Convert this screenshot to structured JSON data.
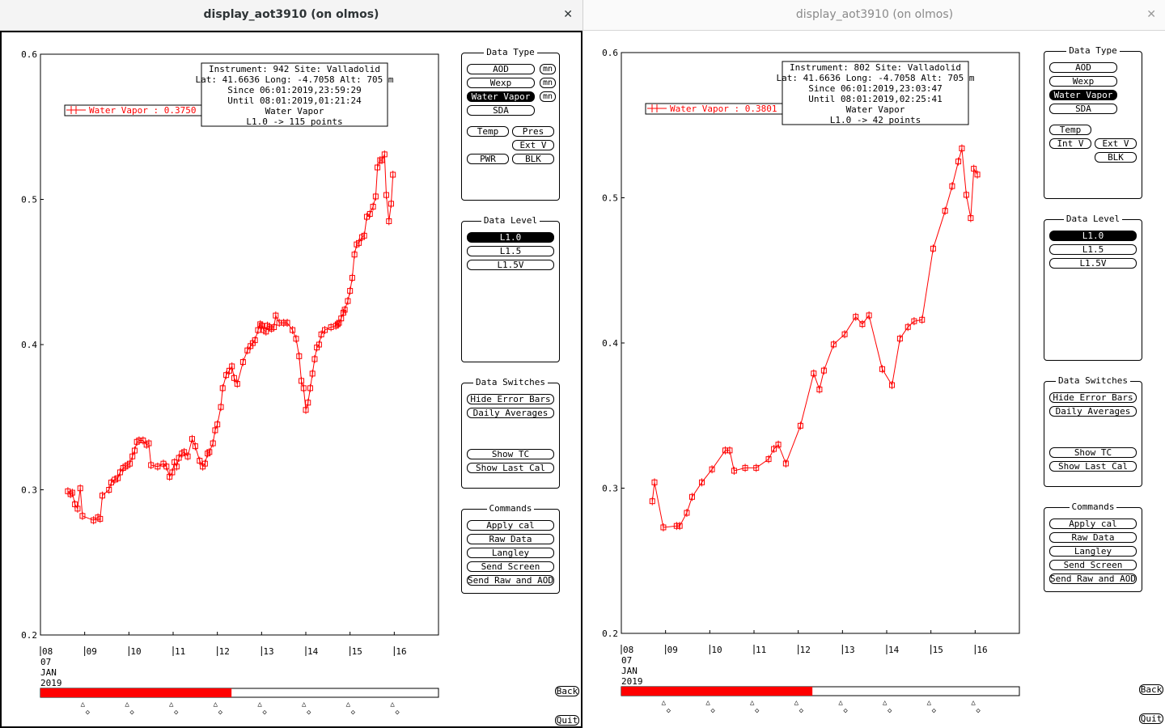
{
  "windows": [
    {
      "title": "display_aot3910 (on olmos)",
      "close_glyph": "✕",
      "active": true,
      "info": {
        "line1": "Instrument: 942 Site: Valladolid",
        "line2": "Lat: 41.6636 Long: -4.7058 Alt: 705 m",
        "line3": "Since 06:01:2019,23:59:29",
        "line4": "Until 08:01:2019,01:21:24",
        "line5": "Water Vapor",
        "line6": "L1.0 -> 115 points"
      },
      "legend_label": "Water Vapor : 0.3750 ±",
      "y_ticks": [
        "0.6",
        "0.5",
        "0.4",
        "0.3",
        "0.2"
      ],
      "x_ticks": [
        "08",
        "09",
        "10",
        "11",
        "12",
        "13",
        "14",
        "15",
        "16"
      ],
      "date_label": [
        "07",
        "JAN",
        "2019"
      ],
      "scroll_fill_fraction": 0.48,
      "chart_data": {
        "type": "scatter",
        "ylabel": "",
        "xlabel": "",
        "ylim": [
          0.2,
          0.6
        ],
        "xlim": [
          8,
          17
        ],
        "color": "#ff0000",
        "series": [
          {
            "x": [
              8.62,
              8.68,
              8.72,
              8.78,
              8.84,
              8.9,
              8.95,
              9.2,
              9.3,
              9.35,
              9.4,
              9.55,
              9.6,
              9.68,
              9.75,
              9.8,
              9.87,
              9.92,
              9.97,
              10.02,
              10.08,
              10.13,
              10.18,
              10.23,
              10.32,
              10.4,
              10.45,
              10.5,
              10.65,
              10.78,
              10.85,
              10.92,
              10.98,
              11.03,
              11.08,
              11.13,
              11.2,
              11.25,
              11.33,
              11.43,
              11.5,
              11.6,
              11.67,
              11.72,
              11.78,
              11.82,
              11.9,
              11.95,
              12.0,
              12.08,
              12.12,
              12.2,
              12.27,
              12.33,
              12.38,
              12.45,
              12.58,
              12.68,
              12.75,
              12.8,
              12.85,
              12.92,
              12.97,
              13.0,
              13.05,
              13.1,
              13.13,
              13.18,
              13.22,
              13.28,
              13.32,
              13.4,
              13.5,
              13.58,
              13.7,
              13.78,
              13.85,
              13.9,
              13.95,
              14.0,
              14.05,
              14.1,
              14.15,
              14.2,
              14.25,
              14.3,
              14.35,
              14.43,
              14.57,
              14.68,
              14.72,
              14.75,
              14.8,
              14.85,
              14.88,
              14.95,
              15.0,
              15.05,
              15.1,
              15.15,
              15.2,
              15.27,
              15.32,
              15.38,
              15.45,
              15.52,
              15.58,
              15.62,
              15.68,
              15.72,
              15.78,
              15.82,
              15.88,
              15.93,
              15.97
            ],
            "y": [
              0.299,
              0.297,
              0.298,
              0.29,
              0.287,
              0.301,
              0.282,
              0.279,
              0.281,
              0.28,
              0.296,
              0.3,
              0.305,
              0.307,
              0.308,
              0.312,
              0.315,
              0.316,
              0.317,
              0.318,
              0.323,
              0.327,
              0.333,
              0.334,
              0.334,
              0.331,
              0.332,
              0.317,
              0.316,
              0.318,
              0.316,
              0.309,
              0.312,
              0.319,
              0.316,
              0.322,
              0.325,
              0.326,
              0.323,
              0.335,
              0.33,
              0.32,
              0.316,
              0.318,
              0.325,
              0.326,
              0.332,
              0.341,
              0.345,
              0.357,
              0.37,
              0.379,
              0.382,
              0.385,
              0.377,
              0.373,
              0.388,
              0.396,
              0.399,
              0.401,
              0.403,
              0.41,
              0.414,
              0.413,
              0.41,
              0.409,
              0.413,
              0.412,
              0.411,
              0.412,
              0.42,
              0.415,
              0.415,
              0.415,
              0.41,
              0.404,
              0.392,
              0.375,
              0.37,
              0.355,
              0.36,
              0.37,
              0.38,
              0.39,
              0.398,
              0.4,
              0.407,
              0.41,
              0.412,
              0.413,
              0.414,
              0.415,
              0.418,
              0.422,
              0.424,
              0.43,
              0.437,
              0.446,
              0.462,
              0.469,
              0.47,
              0.474,
              0.475,
              0.488,
              0.49,
              0.495,
              0.502,
              0.522,
              0.527,
              0.527,
              0.531,
              0.503,
              0.485,
              0.497,
              0.517
            ]
          }
        ]
      },
      "side": {
        "data_type_title": "Data Type",
        "aod": "AOD",
        "wexp": "Wexp",
        "water_vapor": "Water Vapor",
        "sda": "SDA",
        "mn": "mn",
        "temp": "Temp",
        "pres": "Pres",
        "ext_v": "Ext V",
        "pwr": "PWR",
        "blk": "BLK",
        "data_level_title": "Data Level",
        "l10": "L1.0",
        "l15": "L1.5",
        "l15v": "L1.5V",
        "data_switches_title": "Data Switches",
        "hide_error_bars": "Hide Error Bars",
        "daily_averages": "Daily Averages",
        "show_tc": "Show TC",
        "show_last_cal": "Show Last Cal",
        "commands_title": "Commands",
        "apply_cal": "Apply cal",
        "raw_data": "Raw Data",
        "langley": "Langley",
        "send_screen": "Send Screen",
        "send_raw_aod": "Send Raw and AOD",
        "back": "Back",
        "quit": "Quit"
      }
    },
    {
      "title": "display_aot3910 (on olmos)",
      "close_glyph": "✕",
      "active": false,
      "info": {
        "line1": "Instrument: 802 Site: Valladolid",
        "line2": "Lat: 41.6636 Long: -4.7058 Alt: 705 m",
        "line3": "Since 06:01:2019,23:03:47",
        "line4": "Until 08:01:2019,02:25:41",
        "line5": "Water Vapor",
        "line6": "L1.0 -> 42 points"
      },
      "legend_label": "Water Vapor : 0.3801 ±",
      "y_ticks": [
        "0.6",
        "0.5",
        "0.4",
        "0.3",
        "0.2"
      ],
      "x_ticks": [
        "08",
        "09",
        "10",
        "11",
        "12",
        "13",
        "14",
        "15",
        "16"
      ],
      "date_label": [
        "07",
        "JAN",
        "2019"
      ],
      "scroll_fill_fraction": 0.48,
      "chart_data": {
        "type": "scatter",
        "ylabel": "",
        "xlabel": "",
        "ylim": [
          0.2,
          0.6
        ],
        "xlim": [
          8,
          17
        ],
        "color": "#ff0000",
        "series": [
          {
            "x": [
              8.7,
              8.75,
              8.95,
              9.25,
              9.32,
              9.48,
              9.6,
              9.82,
              10.05,
              10.35,
              10.45,
              10.55,
              10.8,
              11.05,
              11.33,
              11.45,
              11.55,
              11.72,
              12.05,
              12.35,
              12.48,
              12.58,
              12.8,
              13.05,
              13.3,
              13.45,
              13.6,
              13.9,
              14.12,
              14.3,
              14.48,
              14.62,
              14.8,
              15.05,
              15.32,
              15.48,
              15.62,
              15.7,
              15.8,
              15.9,
              15.97,
              16.05
            ],
            "y": [
              0.291,
              0.304,
              0.273,
              0.274,
              0.274,
              0.283,
              0.294,
              0.304,
              0.313,
              0.326,
              0.326,
              0.312,
              0.314,
              0.314,
              0.32,
              0.327,
              0.33,
              0.317,
              0.343,
              0.379,
              0.368,
              0.381,
              0.399,
              0.406,
              0.418,
              0.413,
              0.419,
              0.382,
              0.371,
              0.403,
              0.411,
              0.415,
              0.416,
              0.465,
              0.491,
              0.508,
              0.525,
              0.534,
              0.502,
              0.486,
              0.52,
              0.516
            ]
          }
        ]
      },
      "side": {
        "data_type_title": "Data Type",
        "aod": "AOD",
        "wexp": "Wexp",
        "water_vapor": "Water Vapor",
        "sda": "SDA",
        "temp": "Temp",
        "int_v": "Int V",
        "ext_v": "Ext V",
        "blk": "BLK",
        "data_level_title": "Data Level",
        "l10": "L1.0",
        "l15": "L1.5",
        "l15v": "L1.5V",
        "data_switches_title": "Data Switches",
        "hide_error_bars": "Hide Error Bars",
        "daily_averages": "Daily Averages",
        "show_tc": "Show TC",
        "show_last_cal": "Show Last Cal",
        "commands_title": "Commands",
        "apply_cal": "Apply cal",
        "raw_data": "Raw Data",
        "langley": "Langley",
        "send_screen": "Send Screen",
        "send_raw_aod": "Send Raw and AOD",
        "back": "Back",
        "quit": "Quit"
      }
    }
  ]
}
